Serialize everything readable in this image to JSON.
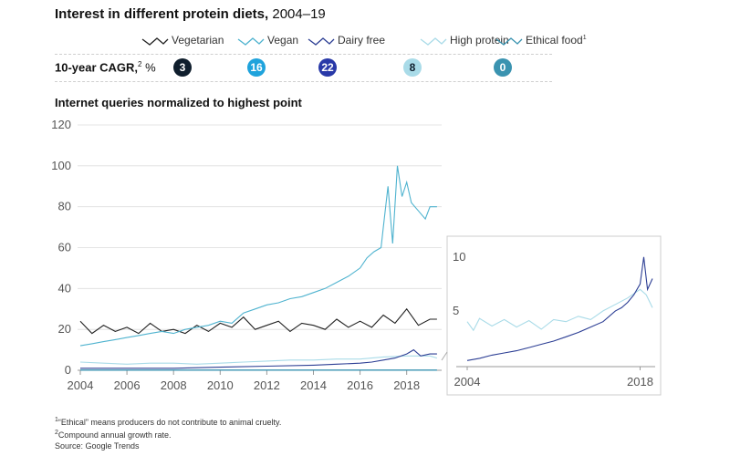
{
  "header": {
    "title_bold": "Interest in different protein diets,",
    "title_years": "2004–19"
  },
  "colors": {
    "vegetarian": "#222222",
    "vegan": "#4fb3cf",
    "dairy_free": "#2c3e94",
    "high_protein": "#a9dbe8",
    "ethical_food": "#3a93b0",
    "axis": "#999999",
    "grid": "#dddddd"
  },
  "legend": {
    "items": [
      {
        "key": "vegetarian",
        "label": "Vegetarian",
        "sup": ""
      },
      {
        "key": "vegan",
        "label": "Vegan",
        "sup": ""
      },
      {
        "key": "dairy_free",
        "label": "Dairy free",
        "sup": ""
      },
      {
        "key": "high_protein",
        "label": "High protein",
        "sup": ""
      },
      {
        "key": "ethical_food",
        "label": "Ethical food",
        "sup": "1"
      }
    ]
  },
  "cagr": {
    "label_bold": "10-year CAGR,",
    "label_sup": "2",
    "label_unit": " %",
    "values": [
      {
        "key": "vegetarian",
        "value": "3",
        "color": "#0f1e2d"
      },
      {
        "key": "vegan",
        "value": "16",
        "color": "#1fa3dc"
      },
      {
        "key": "dairy_free",
        "value": "22",
        "color": "#2939a8"
      },
      {
        "key": "high_protein",
        "value": "8",
        "color": "#a9dbe8"
      },
      {
        "key": "ethical_food",
        "value": "0",
        "color": "#3a93b0"
      }
    ]
  },
  "subtitle": "Internet queries normalized to highest point",
  "footnotes": [
    {
      "sup": "1",
      "text": "“Ethical” means producers do not contribute to animal cruelty."
    },
    {
      "sup": "2",
      "text": "Compound annual growth rate."
    },
    {
      "sup": "",
      "text": " Source: Google Trends"
    }
  ],
  "chart_data": [
    {
      "type": "line",
      "title": "",
      "xlabel": "",
      "ylabel": "",
      "xlim": [
        2004,
        2019.5
      ],
      "ylim": [
        0,
        120
      ],
      "x_ticks": [
        "2004",
        "2006",
        "2008",
        "2010",
        "2012",
        "2014",
        "2016",
        "2018"
      ],
      "y_ticks": [
        "0",
        "20",
        "40",
        "60",
        "80",
        "100",
        "120"
      ],
      "grid": true,
      "series": [
        {
          "name": "Vegetarian",
          "key": "vegetarian",
          "x": [
            2004,
            2004.5,
            2005,
            2005.5,
            2006,
            2006.5,
            2007,
            2007.5,
            2008,
            2008.5,
            2009,
            2009.5,
            2010,
            2010.5,
            2011,
            2011.5,
            2012,
            2012.5,
            2013,
            2013.5,
            2014,
            2014.5,
            2015,
            2015.5,
            2016,
            2016.5,
            2017,
            2017.5,
            2018,
            2018.5,
            2019,
            2019.3
          ],
          "y": [
            24,
            18,
            22,
            19,
            21,
            18,
            23,
            19,
            20,
            18,
            22,
            19,
            23,
            21,
            26,
            20,
            22,
            24,
            19,
            23,
            22,
            20,
            25,
            21,
            24,
            21,
            27,
            23,
            30,
            22,
            25,
            25
          ]
        },
        {
          "name": "Vegan",
          "key": "vegan",
          "x": [
            2004,
            2004.5,
            2005,
            2005.5,
            2006,
            2006.5,
            2007,
            2007.5,
            2008,
            2008.5,
            2009,
            2009.5,
            2010,
            2010.5,
            2011,
            2011.5,
            2012,
            2012.5,
            2013,
            2013.5,
            2014,
            2014.5,
            2015,
            2015.5,
            2016,
            2016.3,
            2016.6,
            2016.9,
            2017,
            2017.2,
            2017.4,
            2017.6,
            2017.8,
            2018,
            2018.2,
            2018.5,
            2018.8,
            2019,
            2019.3
          ],
          "y": [
            12,
            13,
            14,
            15,
            16,
            17,
            18,
            19,
            18,
            20,
            21,
            22,
            24,
            23,
            28,
            30,
            32,
            33,
            35,
            36,
            38,
            40,
            43,
            46,
            50,
            55,
            58,
            60,
            70,
            90,
            62,
            100,
            85,
            92,
            82,
            78,
            74,
            80,
            80
          ]
        },
        {
          "name": "Dairy free",
          "key": "dairy_free",
          "x": [
            2004,
            2006,
            2008,
            2010,
            2012,
            2014,
            2015,
            2016,
            2016.5,
            2017,
            2017.5,
            2018,
            2018.3,
            2018.6,
            2019,
            2019.3
          ],
          "y": [
            1,
            1,
            1,
            1.5,
            2,
            2.5,
            3,
            3.5,
            4,
            5,
            6,
            8,
            10,
            7,
            8,
            8
          ]
        },
        {
          "name": "High protein",
          "key": "high_protein",
          "x": [
            2004,
            2005,
            2006,
            2007,
            2008,
            2009,
            2010,
            2011,
            2012,
            2013,
            2014,
            2015,
            2016,
            2017,
            2018,
            2019,
            2019.3
          ],
          "y": [
            4,
            3.5,
            3,
            3.5,
            3.5,
            3,
            3.5,
            4,
            4.5,
            5,
            5,
            5.5,
            5.5,
            6.5,
            7,
            7,
            6
          ]
        },
        {
          "name": "Ethical food",
          "key": "ethical_food",
          "x": [
            2004,
            2019.3
          ],
          "y": [
            0.1,
            0.1
          ]
        }
      ]
    },
    {
      "type": "line",
      "title": "",
      "xlim": [
        2004,
        2019
      ],
      "ylim": [
        0,
        11
      ],
      "x_ticks": [
        "2004",
        "2018"
      ],
      "y_ticks": [
        "5",
        "10"
      ],
      "series": [
        {
          "name": "Dairy free",
          "key": "dairy_free",
          "x": [
            2004,
            2005,
            2006,
            2007,
            2008,
            2009,
            2010,
            2011,
            2012,
            2013,
            2014,
            2015,
            2016,
            2016.5,
            2017,
            2017.5,
            2018,
            2018.3,
            2018.6,
            2019
          ],
          "y": [
            0.4,
            0.6,
            0.9,
            1.1,
            1.3,
            1.6,
            1.9,
            2.2,
            2.6,
            3.0,
            3.5,
            4.0,
            5.0,
            5.3,
            5.8,
            6.5,
            7.5,
            10,
            7,
            8
          ]
        },
        {
          "name": "High protein",
          "key": "high_protein",
          "x": [
            2004,
            2004.5,
            2005,
            2006,
            2007,
            2008,
            2009,
            2010,
            2011,
            2012,
            2013,
            2014,
            2015,
            2016,
            2017,
            2018,
            2018.5,
            2019
          ],
          "y": [
            4,
            3.2,
            4.3,
            3.6,
            4.2,
            3.5,
            4.1,
            3.3,
            4.2,
            4.0,
            4.5,
            4.2,
            5.0,
            5.6,
            6.2,
            7.0,
            6.5,
            5.3
          ]
        }
      ]
    }
  ]
}
